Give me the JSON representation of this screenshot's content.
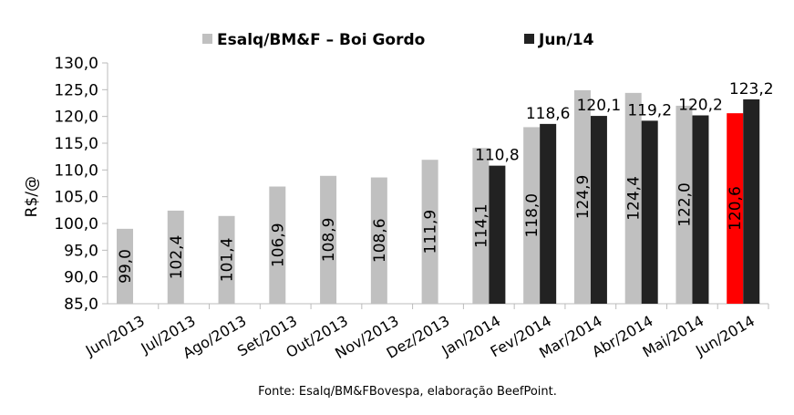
{
  "chart_data": {
    "type": "bar",
    "ylabel": "R$/@",
    "ylim": [
      85,
      130
    ],
    "yticks": [
      "85,0",
      "90,0",
      "95,0",
      "100,0",
      "105,0",
      "110,0",
      "115,0",
      "120,0",
      "125,0",
      "130,0"
    ],
    "categories": [
      "Jun/2013",
      "Jul/2013",
      "Ago/2013",
      "Set/2013",
      "Out/2013",
      "Nov/2013",
      "Dez/2013",
      "Jan/2014",
      "Fev/2014",
      "Mar/2014",
      "Abr/2014",
      "Mai/2014",
      "Jun/2014"
    ],
    "series": [
      {
        "name": "Esalq/BM&F – Boi Gordo",
        "color": "#c0c0c0",
        "highlight_last": "#ff0000",
        "values": [
          99.0,
          102.4,
          101.4,
          106.9,
          108.9,
          108.6,
          111.9,
          114.1,
          118.0,
          124.9,
          124.4,
          122.0,
          120.6
        ],
        "labels": [
          "99,0",
          "102,4",
          "101,4",
          "106,9",
          "108,9",
          "108,6",
          "111,9",
          "114,1",
          "118,0",
          "124,9",
          "124,4",
          "122,0",
          "120,6"
        ]
      },
      {
        "name": "Jun/14",
        "color": "#222222",
        "values": [
          null,
          null,
          null,
          null,
          null,
          null,
          null,
          110.8,
          118.6,
          120.1,
          119.2,
          120.2,
          123.2
        ],
        "labels": [
          null,
          null,
          null,
          null,
          null,
          null,
          null,
          "110,8",
          "118,6",
          "120,1",
          "119,2",
          "120,2",
          "123,2"
        ]
      }
    ],
    "legend_position": "top",
    "grid": false,
    "footnote": "Fonte:  Esalq/BM&FBovespa,  elaboração  BeefPoint."
  }
}
